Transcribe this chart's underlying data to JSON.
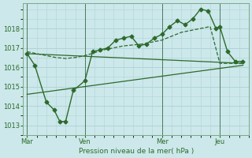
{
  "background_color": "#cce8ea",
  "grid_color": "#b0d4d8",
  "line_color": "#2d6a2d",
  "text_color": "#2d6a2d",
  "xlabel": "Pression niveau de la mer( hPa )",
  "ylim": [
    1012.5,
    1019.3
  ],
  "yticks": [
    1013,
    1014,
    1015,
    1016,
    1017,
    1018
  ],
  "xtick_labels": [
    "Mar",
    "Ven",
    "Mer",
    "Jeu"
  ],
  "xtick_positions": [
    0,
    3,
    7,
    10
  ],
  "vline_positions": [
    0,
    3,
    7,
    10
  ],
  "series_main": {
    "x": [
      0,
      0.4,
      1.0,
      1.4,
      1.7,
      2.0,
      2.4,
      3.0,
      3.4,
      3.8,
      4.2,
      4.6,
      5.0,
      5.4,
      5.8,
      6.2,
      6.6,
      7.0,
      7.4,
      7.8,
      8.2,
      8.6,
      9.0,
      9.4,
      9.8,
      10.0,
      10.4,
      10.8,
      11.2
    ],
    "y": [
      1016.7,
      1016.1,
      1014.2,
      1013.8,
      1013.2,
      1013.2,
      1014.8,
      1015.3,
      1016.8,
      1016.9,
      1017.0,
      1017.4,
      1017.5,
      1017.6,
      1017.1,
      1017.2,
      1017.5,
      1017.7,
      1018.1,
      1018.4,
      1018.2,
      1018.5,
      1019.0,
      1018.9,
      1018.0,
      1018.1,
      1016.8,
      1016.3,
      1016.3
    ],
    "marker": "D",
    "markersize": 2.5,
    "linewidth": 1.0
  },
  "series_smooth": {
    "x": [
      0,
      0.5,
      1.0,
      1.5,
      2.0,
      2.5,
      3.0,
      3.5,
      4.0,
      4.5,
      5.0,
      5.5,
      6.0,
      6.5,
      7.0,
      7.5,
      8.0,
      8.5,
      9.0,
      9.5,
      10.0,
      10.5,
      11.2
    ],
    "y": [
      1016.8,
      1016.7,
      1016.6,
      1016.5,
      1016.45,
      1016.5,
      1016.6,
      1016.75,
      1016.9,
      1017.0,
      1017.1,
      1017.15,
      1017.2,
      1017.3,
      1017.4,
      1017.6,
      1017.8,
      1017.9,
      1018.0,
      1018.1,
      1016.2,
      1016.2,
      1016.2
    ],
    "linewidth": 0.9,
    "linestyle": "--"
  },
  "trend_lower": {
    "x": [
      0,
      11.2
    ],
    "y": [
      1014.6,
      1016.1
    ],
    "linewidth": 0.9
  },
  "trend_upper": {
    "x": [
      0,
      11.2
    ],
    "y": [
      1016.7,
      1016.2
    ],
    "linewidth": 0.9
  }
}
